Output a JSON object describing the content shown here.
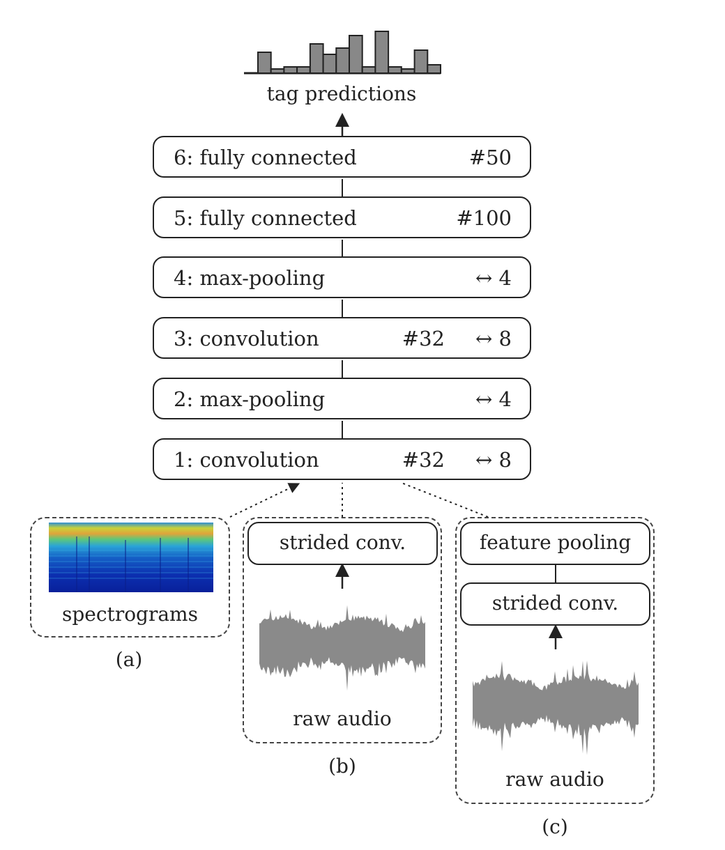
{
  "output": {
    "label": "tag predictions",
    "histogram_bars": [
      0.5,
      0.1,
      0.15,
      0.15,
      0.7,
      0.45,
      0.6,
      0.9,
      0.15,
      1.0,
      0.15,
      0.1,
      0.55,
      0.2
    ]
  },
  "layers": [
    {
      "name": "6: fully connected",
      "count": "#50",
      "pool": ""
    },
    {
      "name": "5: fully connected",
      "count": "#100",
      "pool": ""
    },
    {
      "name": "4: max-pooling",
      "count": "",
      "pool": "↔ 4"
    },
    {
      "name": "3: convolution",
      "count": "#32",
      "pool": "↔ 8"
    },
    {
      "name": "2: max-pooling",
      "count": "",
      "pool": "↔ 4"
    },
    {
      "name": "1: convolution",
      "count": "#32",
      "pool": "↔ 8"
    }
  ],
  "variants": {
    "a": {
      "input_label": "spectrograms",
      "caption": "(a)"
    },
    "b": {
      "conv_label": "strided conv.",
      "input_label": "raw audio",
      "caption": "(b)"
    },
    "c": {
      "pool_label": "feature pooling",
      "conv_label": "strided conv.",
      "input_label": "raw audio",
      "caption": "(c)"
    }
  },
  "colors": {
    "bar_fill": "#888888",
    "stroke": "#222222",
    "waveform": "#8a8a8a"
  }
}
